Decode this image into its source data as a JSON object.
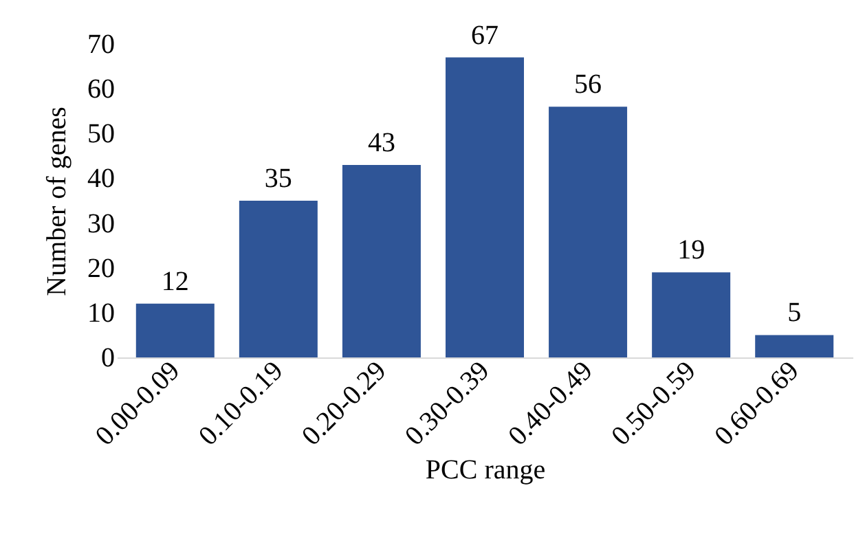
{
  "chart_data": {
    "type": "bar",
    "xlabel": "PCC range",
    "ylabel": "Number of genes",
    "categories": [
      "0.00-0.09",
      "0.10-0.19",
      "0.20-0.29",
      "0.30-0.39",
      "0.40-0.49",
      "0.50-0.59",
      "0.60-0.69"
    ],
    "values": [
      12,
      35,
      43,
      67,
      56,
      19,
      5
    ],
    "color": "#2f5597",
    "ylim": [
      0,
      70
    ],
    "yticks": [
      0,
      10,
      20,
      30,
      40,
      50,
      60,
      70
    ],
    "grid": false,
    "data_labels": true
  }
}
